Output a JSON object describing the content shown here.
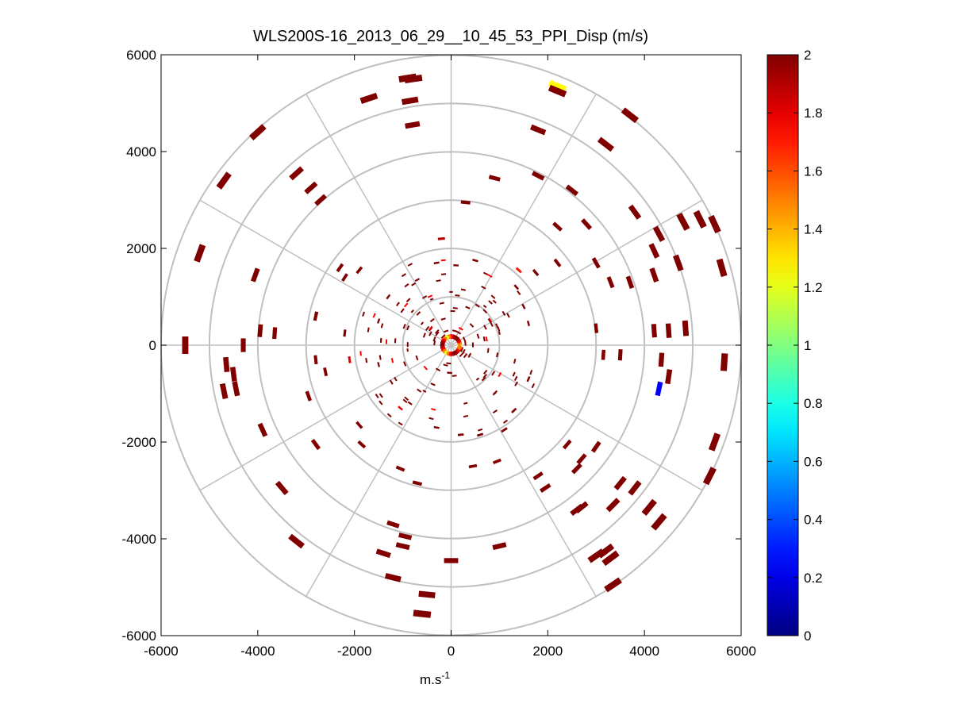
{
  "chart_data": {
    "type": "scatter",
    "subtype": "polar-ppi",
    "title": "WLS200S-16_2013_06_29__10_45_53_PPI_Disp (m/s)",
    "xlabel_main": "m.s",
    "xlabel_sup": "-1",
    "ylabel": "",
    "xlim": [
      -6000,
      6000
    ],
    "ylim": [
      -6000,
      6000
    ],
    "xticks": [
      -6000,
      -4000,
      -2000,
      0,
      2000,
      4000,
      6000
    ],
    "yticks": [
      6000,
      4000,
      2000,
      0,
      -2000,
      -4000,
      -6000
    ],
    "xtick_labels": [
      "-6000",
      "-4000",
      "-2000",
      "0",
      "2000",
      "4000",
      "6000"
    ],
    "ytick_labels": [
      "6000",
      "4000",
      "2000",
      "0",
      "-2000",
      "-4000",
      "-6000"
    ],
    "polar_rings": [
      1000,
      2000,
      3000,
      4000,
      5000,
      6000
    ],
    "polar_spokes_deg": [
      0,
      30,
      60,
      90,
      120,
      150,
      180,
      210,
      240,
      270,
      300,
      330
    ],
    "colorbar": {
      "min": 0,
      "max": 2,
      "ticks": [
        0,
        0.2,
        0.4,
        0.6,
        0.8,
        1,
        1.2,
        1.4,
        1.6,
        1.8,
        2
      ],
      "tick_labels": [
        "0",
        "0.2",
        "0.4",
        "0.6",
        "0.8",
        "1",
        "1.2",
        "1.4",
        "1.6",
        "1.8",
        "2"
      ],
      "colormap": "jet"
    },
    "points": [
      {
        "x": -780,
        "y": 5500,
        "v": 2
      },
      {
        "x": -900,
        "y": 5520,
        "v": 2
      },
      {
        "x": -1700,
        "y": 5100,
        "v": 2
      },
      {
        "x": -850,
        "y": 5050,
        "v": 2
      },
      {
        "x": 2200,
        "y": 5350,
        "v": 1.25
      },
      {
        "x": 2200,
        "y": 5250,
        "v": 2
      },
      {
        "x": -4000,
        "y": 4400,
        "v": 2
      },
      {
        "x": -800,
        "y": 4550,
        "v": 2
      },
      {
        "x": 1800,
        "y": 4450,
        "v": 2
      },
      {
        "x": 3700,
        "y": 4750,
        "v": 2
      },
      {
        "x": 3200,
        "y": 4150,
        "v": 2
      },
      {
        "x": -4700,
        "y": 3400,
        "v": 2
      },
      {
        "x": -3200,
        "y": 3550,
        "v": 2
      },
      {
        "x": -2900,
        "y": 3250,
        "v": 2
      },
      {
        "x": -2700,
        "y": 3000,
        "v": 2
      },
      {
        "x": 900,
        "y": 3450,
        "v": 2
      },
      {
        "x": 1800,
        "y": 3500,
        "v": 2
      },
      {
        "x": 2500,
        "y": 3200,
        "v": 2
      },
      {
        "x": 3800,
        "y": 2750,
        "v": 2
      },
      {
        "x": 300,
        "y": 2950,
        "v": 2
      },
      {
        "x": -5200,
        "y": 1900,
        "v": 2
      },
      {
        "x": 4800,
        "y": 2550,
        "v": 2
      },
      {
        "x": 5150,
        "y": 2600,
        "v": 2
      },
      {
        "x": 5450,
        "y": 2500,
        "v": 2
      },
      {
        "x": 2200,
        "y": 2450,
        "v": 2
      },
      {
        "x": 2800,
        "y": 2500,
        "v": 2
      },
      {
        "x": 4300,
        "y": 2300,
        "v": 2
      },
      {
        "x": 4200,
        "y": 1950,
        "v": 2
      },
      {
        "x": 4700,
        "y": 1700,
        "v": 2
      },
      {
        "x": 5600,
        "y": 1600,
        "v": 2
      },
      {
        "x": -200,
        "y": 2200,
        "v": 1.9
      },
      {
        "x": -2300,
        "y": 1600,
        "v": 2
      },
      {
        "x": -1900,
        "y": 1550,
        "v": 2
      },
      {
        "x": -2200,
        "y": 1400,
        "v": 2
      },
      {
        "x": -4050,
        "y": 1450,
        "v": 2
      },
      {
        "x": 1750,
        "y": 1500,
        "v": 2
      },
      {
        "x": 2200,
        "y": 1700,
        "v": 2
      },
      {
        "x": 3000,
        "y": 1700,
        "v": 2
      },
      {
        "x": 3300,
        "y": 1300,
        "v": 2
      },
      {
        "x": 3700,
        "y": 1300,
        "v": 2
      },
      {
        "x": 4200,
        "y": 1450,
        "v": 2
      },
      {
        "x": -2800,
        "y": 600,
        "v": 2
      },
      {
        "x": -3650,
        "y": 250,
        "v": 2
      },
      {
        "x": -3950,
        "y": 300,
        "v": 2
      },
      {
        "x": -4300,
        "y": 0,
        "v": 2
      },
      {
        "x": -5500,
        "y": 0,
        "v": 2
      },
      {
        "x": -2200,
        "y": 250,
        "v": 2
      },
      {
        "x": 3000,
        "y": 350,
        "v": 2
      },
      {
        "x": 4200,
        "y": 300,
        "v": 2
      },
      {
        "x": 4500,
        "y": 300,
        "v": 2
      },
      {
        "x": 4850,
        "y": 350,
        "v": 2
      },
      {
        "x": 3150,
        "y": -200,
        "v": 2
      },
      {
        "x": 3500,
        "y": -200,
        "v": 2
      },
      {
        "x": 4350,
        "y": -300,
        "v": 2
      },
      {
        "x": 4500,
        "y": -650,
        "v": 2
      },
      {
        "x": 4300,
        "y": -900,
        "v": 0.25
      },
      {
        "x": 5650,
        "y": -350,
        "v": 2
      },
      {
        "x": -4650,
        "y": -400,
        "v": 2
      },
      {
        "x": -4500,
        "y": -600,
        "v": 2
      },
      {
        "x": -4450,
        "y": -900,
        "v": 2
      },
      {
        "x": -4700,
        "y": -950,
        "v": 2
      },
      {
        "x": -2800,
        "y": -300,
        "v": 2
      },
      {
        "x": -2600,
        "y": -550,
        "v": 2
      },
      {
        "x": -2950,
        "y": -1050,
        "v": 2
      },
      {
        "x": -3900,
        "y": -1750,
        "v": 2
      },
      {
        "x": -2800,
        "y": -2050,
        "v": 2
      },
      {
        "x": -1900,
        "y": -1650,
        "v": 2
      },
      {
        "x": -1850,
        "y": -2050,
        "v": 2
      },
      {
        "x": -3500,
        "y": -2950,
        "v": 2
      },
      {
        "x": -1050,
        "y": -2550,
        "v": 2
      },
      {
        "x": -700,
        "y": -2850,
        "v": 2
      },
      {
        "x": 450,
        "y": -2500,
        "v": 2
      },
      {
        "x": 950,
        "y": -2400,
        "v": 2
      },
      {
        "x": 1800,
        "y": -2700,
        "v": 2
      },
      {
        "x": 1950,
        "y": -2950,
        "v": 2
      },
      {
        "x": 2600,
        "y": -2550,
        "v": 2
      },
      {
        "x": 2700,
        "y": -2350,
        "v": 2
      },
      {
        "x": 3500,
        "y": -2850,
        "v": 2
      },
      {
        "x": 3800,
        "y": -2950,
        "v": 2
      },
      {
        "x": 3350,
        "y": -3300,
        "v": 2
      },
      {
        "x": 4100,
        "y": -3350,
        "v": 2
      },
      {
        "x": 4300,
        "y": -3650,
        "v": 2
      },
      {
        "x": 5450,
        "y": -2000,
        "v": 2
      },
      {
        "x": 5350,
        "y": -2700,
        "v": 2
      },
      {
        "x": 2700,
        "y": -3350,
        "v": 2
      },
      {
        "x": 3000,
        "y": -2100,
        "v": 2
      },
      {
        "x": 2400,
        "y": -2050,
        "v": 2
      },
      {
        "x": -3200,
        "y": -4050,
        "v": 2
      },
      {
        "x": -1200,
        "y": -3700,
        "v": 2
      },
      {
        "x": -950,
        "y": -3950,
        "v": 2
      },
      {
        "x": -1000,
        "y": -4150,
        "v": 2
      },
      {
        "x": -1400,
        "y": -4300,
        "v": 2
      },
      {
        "x": 0,
        "y": -4450,
        "v": 2
      },
      {
        "x": 1000,
        "y": -4150,
        "v": 2
      },
      {
        "x": 2600,
        "y": -3400,
        "v": 2
      },
      {
        "x": 3000,
        "y": -4350,
        "v": 2
      },
      {
        "x": 3200,
        "y": -4250,
        "v": 2
      },
      {
        "x": 3300,
        "y": -4400,
        "v": 2
      },
      {
        "x": 3350,
        "y": -4950,
        "v": 2
      },
      {
        "x": -1200,
        "y": -4800,
        "v": 2
      },
      {
        "x": -500,
        "y": -5150,
        "v": 2
      },
      {
        "x": -600,
        "y": -5550,
        "v": 2
      },
      {
        "x": -700,
        "y": 1350,
        "v": 2
      },
      {
        "x": -300,
        "y": 1700,
        "v": 2
      },
      {
        "x": 100,
        "y": 1650,
        "v": 2
      },
      {
        "x": 500,
        "y": 1750,
        "v": 2
      },
      {
        "x": 1400,
        "y": 1550,
        "v": 1.7
      },
      {
        "x": 1350,
        "y": 1200,
        "v": 2
      },
      {
        "x": -1300,
        "y": 1000,
        "v": 2
      },
      {
        "x": -1100,
        "y": 850,
        "v": 2
      },
      {
        "x": -800,
        "y": 700,
        "v": 2
      },
      {
        "x": 1500,
        "y": 800,
        "v": 2
      },
      {
        "x": 1600,
        "y": 450,
        "v": 2
      },
      {
        "x": -1500,
        "y": 500,
        "v": 2
      },
      {
        "x": -1450,
        "y": 100,
        "v": 2
      },
      {
        "x": -2100,
        "y": -300,
        "v": 1.8
      },
      {
        "x": -1500,
        "y": -400,
        "v": 2
      },
      {
        "x": -1150,
        "y": -700,
        "v": 2
      },
      {
        "x": -850,
        "y": -1200,
        "v": 2
      },
      {
        "x": -1050,
        "y": -1300,
        "v": 1.8
      },
      {
        "x": -300,
        "y": -1700,
        "v": 2
      },
      {
        "x": 200,
        "y": -1850,
        "v": 2
      },
      {
        "x": 600,
        "y": -1850,
        "v": 2
      },
      {
        "x": 1100,
        "y": -1750,
        "v": 2
      },
      {
        "x": 1300,
        "y": -1350,
        "v": 2
      },
      {
        "x": 1600,
        "y": -700,
        "v": 2
      },
      {
        "x": 1300,
        "y": -600,
        "v": 2
      },
      {
        "x": 900,
        "y": -1000,
        "v": 2
      },
      {
        "x": 1000,
        "y": 250,
        "v": 2
      },
      {
        "x": 700,
        "y": 800,
        "v": 2
      },
      {
        "x": 900,
        "y": 900,
        "v": 2
      },
      {
        "x": -400,
        "y": 950,
        "v": 2
      },
      {
        "x": -600,
        "y": 450,
        "v": 2
      },
      {
        "x": -900,
        "y": -100,
        "v": 2
      },
      {
        "x": -550,
        "y": -950,
        "v": 2
      },
      {
        "x": 550,
        "y": -700,
        "v": 2
      },
      {
        "x": 0,
        "y": 1100,
        "v": 2
      },
      {
        "x": 300,
        "y": -1200,
        "v": 2
      }
    ],
    "near_center_colored_ring": true
  }
}
